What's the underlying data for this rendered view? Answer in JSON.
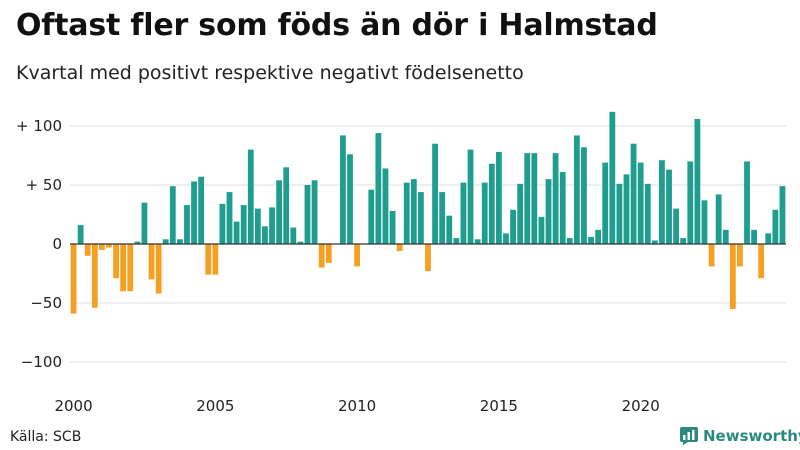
{
  "header": {
    "title": "Oftast fler som föds än dör i Halmstad",
    "subtitle": "Kvartal med positivt respektive negativt födelsenetto"
  },
  "footer": {
    "source": "Källa: SCB",
    "brand": "Newsworthy"
  },
  "colors": {
    "positive": "#1f9e8f",
    "negative": "#f5a021",
    "grid": "#dddddd",
    "zero": "#333333",
    "brand": "#2a8a80"
  },
  "chart_data": {
    "type": "bar",
    "period": "quarter",
    "start": "2000 Q1",
    "values": [
      -59,
      16,
      -10,
      -54,
      -5,
      -3,
      -29,
      -40,
      -40,
      2,
      35,
      -30,
      -42,
      4,
      49,
      4,
      33,
      53,
      57,
      -26,
      -26,
      34,
      44,
      19,
      33,
      80,
      30,
      15,
      31,
      54,
      65,
      14,
      2,
      50,
      54,
      -20,
      -16,
      0,
      92,
      76,
      -19,
      0,
      46,
      94,
      64,
      28,
      -6,
      52,
      55,
      44,
      -23,
      85,
      44,
      24,
      5,
      52,
      80,
      4,
      52,
      68,
      78,
      9,
      29,
      51,
      77,
      77,
      23,
      55,
      77,
      61,
      5,
      92,
      82,
      6,
      12,
      69,
      112,
      51,
      59,
      85,
      69,
      51,
      3,
      71,
      63,
      30,
      5,
      70,
      106,
      37,
      -19,
      42,
      12,
      -55,
      -19,
      70,
      12,
      -29,
      9,
      29,
      49
    ],
    "x_ticks": [
      "2000",
      "2005",
      "2010",
      "2015",
      "2020"
    ],
    "y_ticks": [
      {
        "value": 100,
        "label": "+ 100"
      },
      {
        "value": 50,
        "label": "+  50"
      },
      {
        "value": 0,
        "label": "0"
      },
      {
        "value": -50,
        "label": "−50"
      },
      {
        "value": -100,
        "label": "−100"
      }
    ],
    "ylim": [
      -100,
      112
    ],
    "grid": true,
    "legend": "none"
  }
}
